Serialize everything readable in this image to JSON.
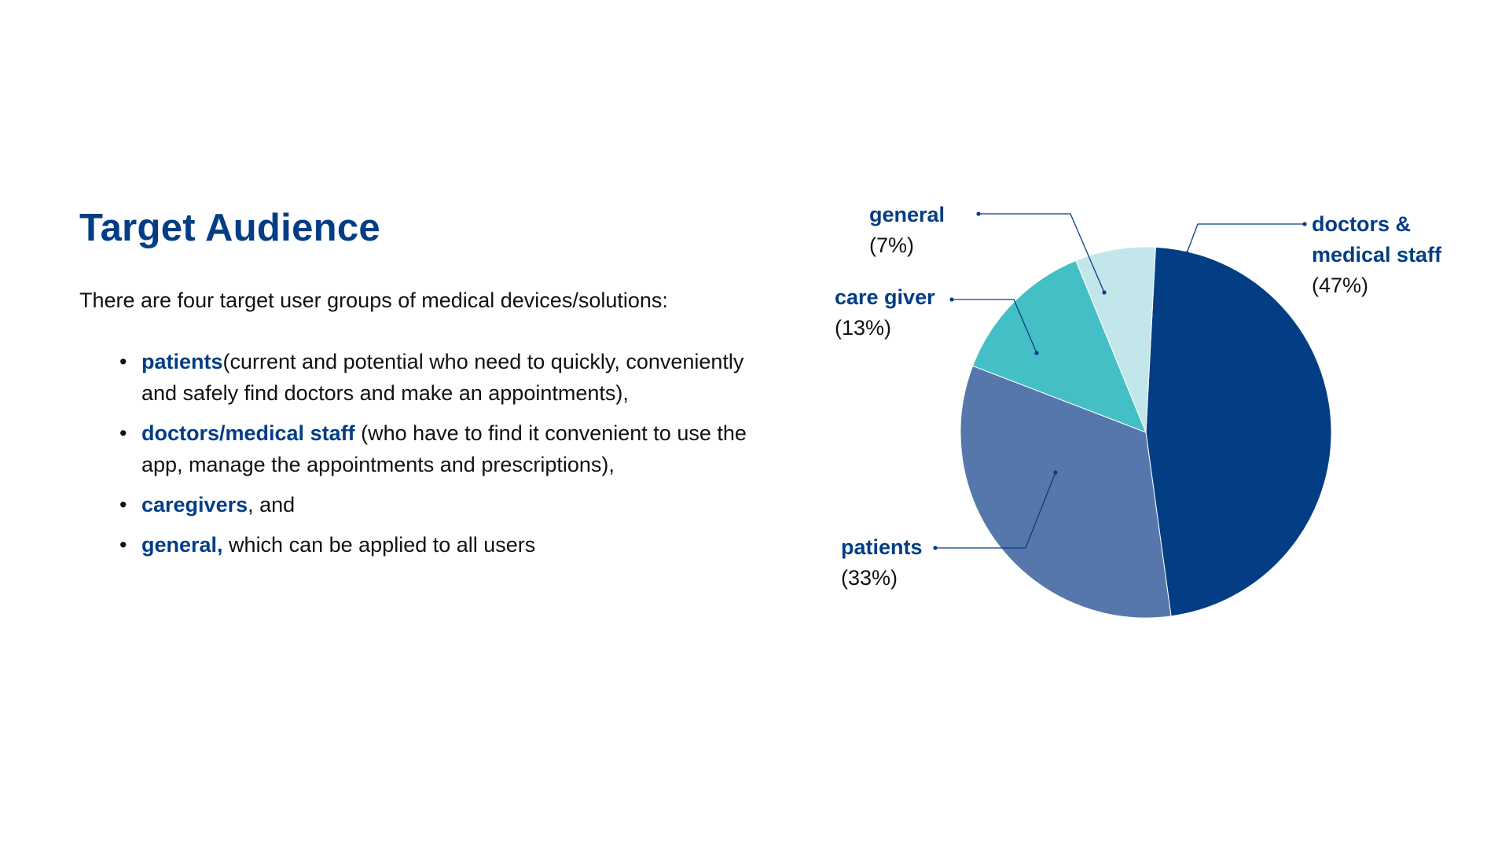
{
  "slide": {
    "title": "Target Audience",
    "intro": "There are four target user groups of medical devices/solutions:",
    "bullets": [
      {
        "term": "patients",
        "rest": "(current and potential who need to quickly, conveniently and safely find doctors and make an appointments),"
      },
      {
        "term": "doctors/medical staff",
        "rest": " (who have to find it convenient to use the app, manage the appointments and prescriptions),"
      },
      {
        "term": "caregivers",
        "rest": ", and"
      },
      {
        "term": "general,",
        "rest": " which can be applied to all users"
      }
    ],
    "bullet_glyph": "•"
  },
  "chart_data": {
    "type": "pie",
    "slices": [
      {
        "label_lines": [
          "doctors &",
          "medical staff"
        ],
        "pct_label": "(47%)",
        "value": 47,
        "color": "#033e84"
      },
      {
        "label_lines": [
          "patients"
        ],
        "pct_label": "(33%)",
        "value": 33,
        "color": "#5677ab"
      },
      {
        "label_lines": [
          "care giver"
        ],
        "pct_label": "(13%)",
        "value": 13,
        "color": "#44bfc6"
      },
      {
        "label_lines": [
          "general"
        ],
        "pct_label": "(7%)",
        "value": 7,
        "color": "#c3e6ea"
      }
    ],
    "legend": "none",
    "label_placement": "outside-with-leader-lines"
  }
}
